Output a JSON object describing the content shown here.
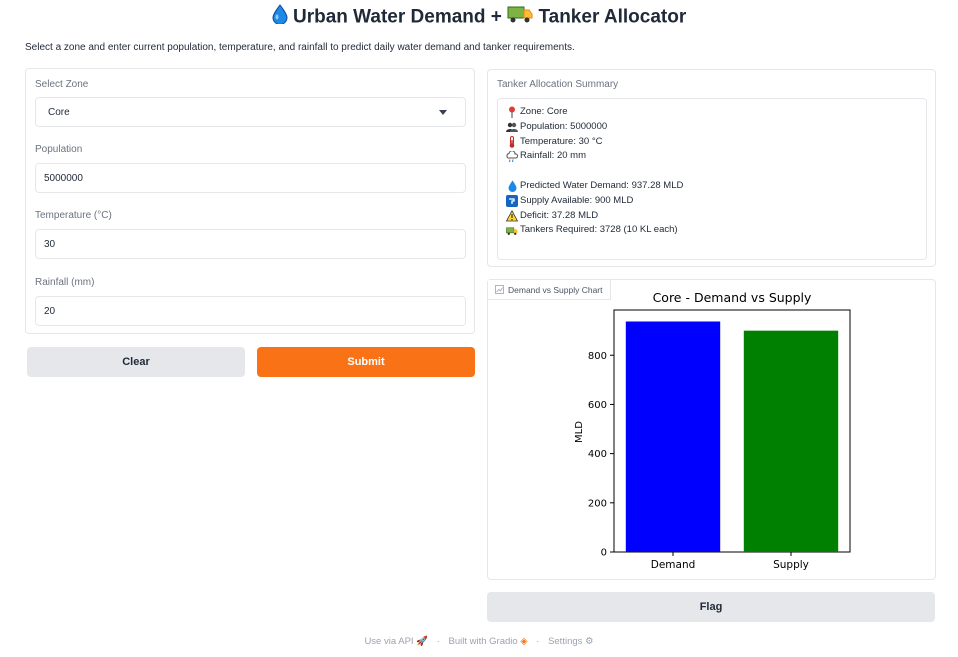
{
  "header": {
    "title_icon": "droplet-emoji",
    "title_part1": "Urban Water Demand +",
    "title_icon2": "truck-emoji",
    "title_part2": "Tanker Allocator",
    "subtitle": "Select a zone and enter current population, temperature, and rainfall to predict daily water demand and tanker requirements."
  },
  "form": {
    "zone_label": "Select Zone",
    "zone_value": "Core",
    "population_label": "Population",
    "population_value": "5000000",
    "temperature_label": "Temperature (°C)",
    "temperature_value": "30",
    "rainfall_label": "Rainfall (mm)",
    "rainfall_value": "20"
  },
  "buttons": {
    "clear": "Clear",
    "submit": "Submit",
    "flag": "Flag"
  },
  "summary": {
    "label": "Tanker Allocation Summary",
    "lines": [
      {
        "icon": "pin-icon",
        "text": "Zone: Core"
      },
      {
        "icon": "people-icon",
        "text": "Population: 5000000"
      },
      {
        "icon": "thermometer-icon",
        "text": "Temperature: 30 °C"
      },
      {
        "icon": "rain-cloud-icon",
        "text": "Rainfall: 20 mm"
      },
      {
        "icon": "droplet-icon",
        "text": "Predicted Water Demand: 937.28 MLD"
      },
      {
        "icon": "tap-icon",
        "text": "Supply Available: 900 MLD"
      },
      {
        "icon": "warning-icon",
        "text": "Deficit: 37.28 MLD"
      },
      {
        "icon": "truck-icon",
        "text": "Tankers Required: 3728 (10 KL each)"
      }
    ]
  },
  "chart_tab": "Demand vs Supply Chart",
  "chart_data": {
    "type": "bar",
    "title": "Core - Demand vs Supply",
    "categories": [
      "Demand",
      "Supply"
    ],
    "values": [
      937.28,
      900
    ],
    "colors": [
      "#0000ff",
      "#008000"
    ],
    "xlabel": "",
    "ylabel": "MLD",
    "ylim": [
      0,
      984
    ],
    "yticks": [
      0,
      200,
      400,
      600,
      800
    ],
    "grid": false
  },
  "footer": {
    "api": "Use via API",
    "built": "Built with Gradio",
    "settings": "Settings"
  },
  "colors": {
    "accent": "#f97316",
    "border": "#e5e7eb",
    "secondary_button": "#e5e7eb"
  }
}
